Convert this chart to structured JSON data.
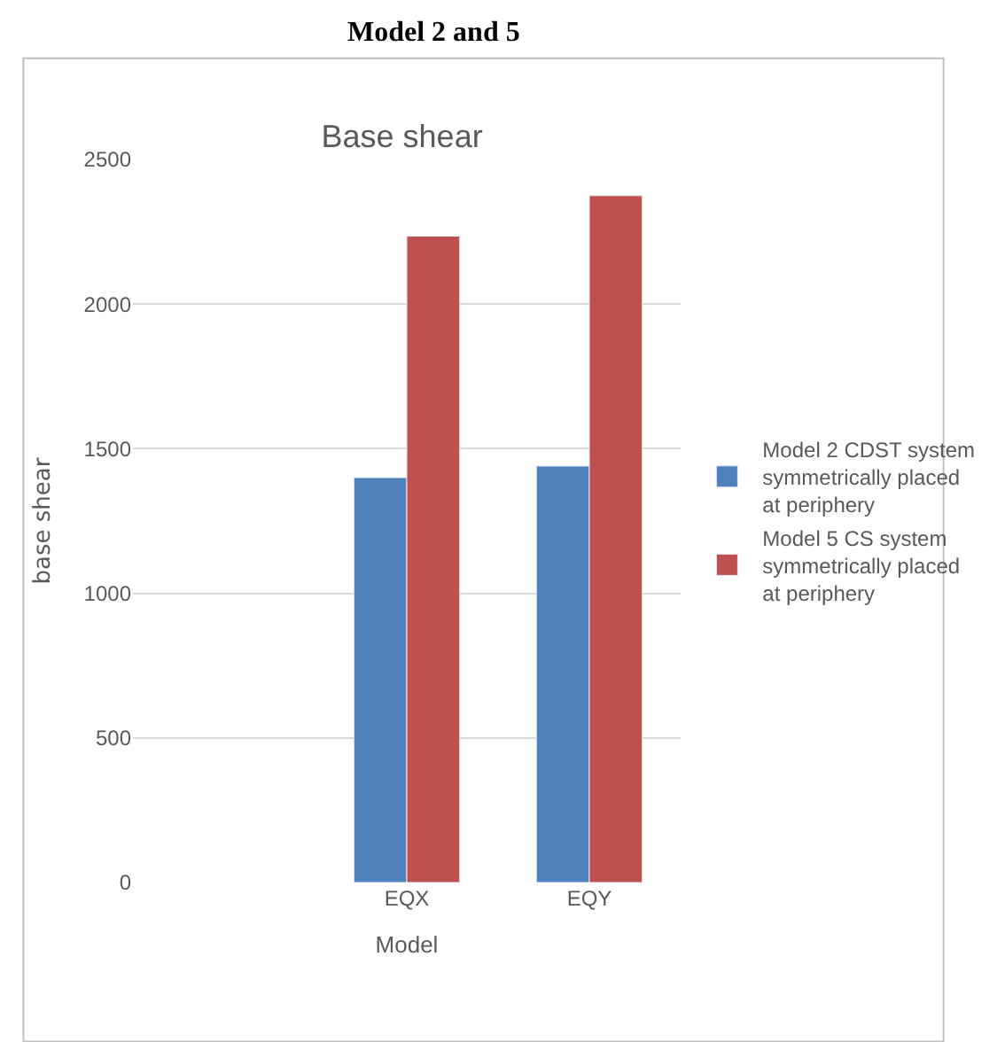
{
  "chart_data": {
    "type": "bar",
    "title": "Base shear",
    "xlabel": "Model",
    "ylabel": "base shear",
    "annotations": [
      "Model 2 and 5"
    ],
    "categories": [
      null,
      "EQX",
      "EQY"
    ],
    "series": [
      {
        "name": "Model 2 CDST system symmetrically placed at periphery",
        "color": "#4f81bd",
        "values": [
          null,
          1400,
          1440
        ]
      },
      {
        "name": "Model 5 CS system symmetrically placed at periphery",
        "color": "#c0504d",
        "values": [
          null,
          2235,
          2375
        ]
      }
    ],
    "ylim": [
      0,
      2500
    ],
    "yticks": [
      0,
      500,
      1000,
      1500,
      2000,
      2500
    ],
    "grid": "y",
    "legend": "right"
  }
}
